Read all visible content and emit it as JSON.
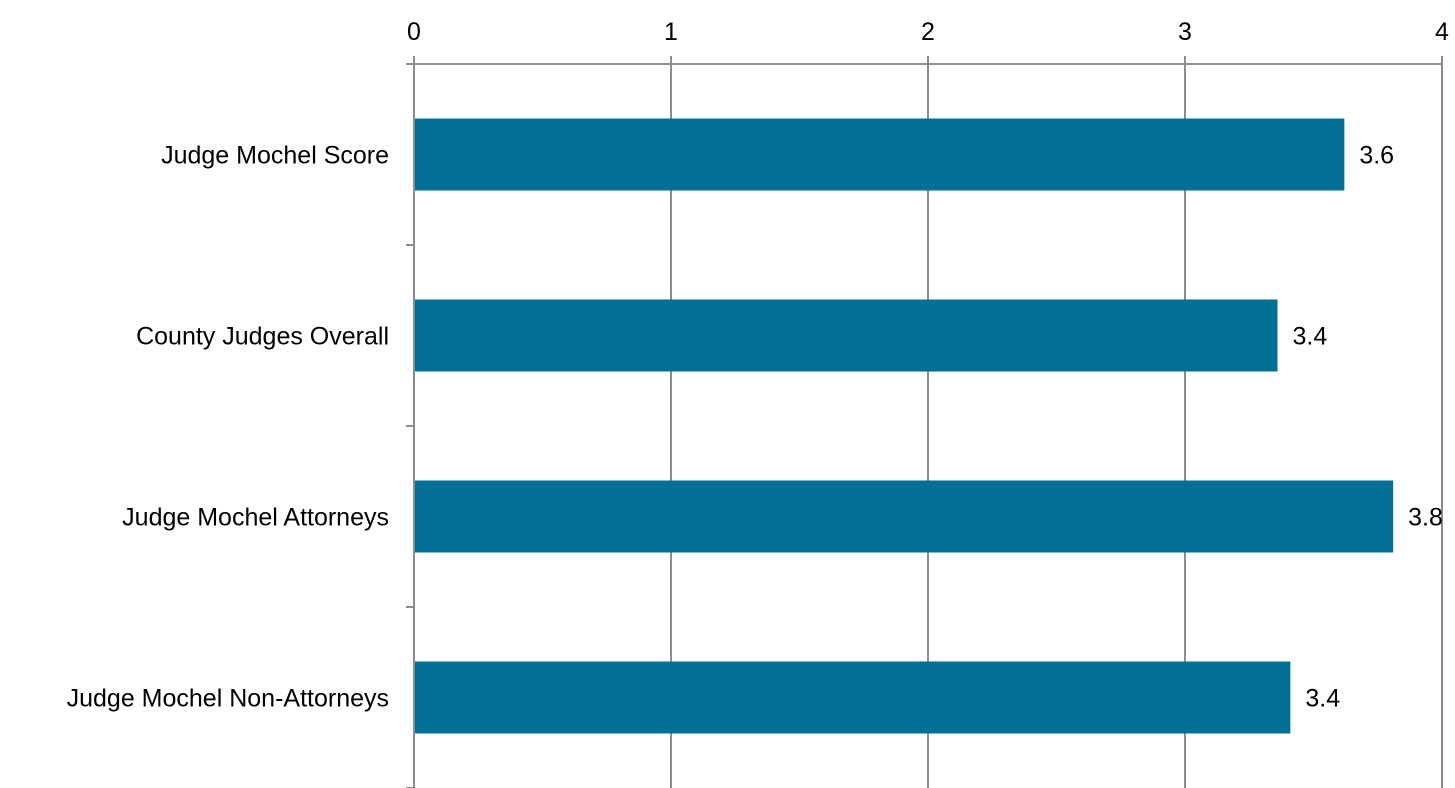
{
  "chart_data": {
    "type": "bar",
    "orientation": "horizontal",
    "title": "",
    "xlabel": "",
    "ylabel": "",
    "categories": [
      "Judge Mochel Score",
      "County Judges Overall",
      "Judge Mochel Attorneys",
      "Judge Mochel Non-Attorneys"
    ],
    "values": [
      3.62,
      3.36,
      3.81,
      3.41
    ],
    "data_labels": [
      "3.6",
      "3.4",
      "3.8",
      "3.4"
    ],
    "xlim": [
      0,
      4
    ],
    "ticks": [
      0,
      1,
      2,
      3,
      4
    ],
    "tick_labels": [
      "0",
      "1",
      "2",
      "3",
      "4"
    ],
    "x_axis_position": "top",
    "grid": true,
    "legend": "none",
    "colors": {
      "bar": "#026F94",
      "grid": "#8C8C8C",
      "text": "#000000"
    }
  }
}
